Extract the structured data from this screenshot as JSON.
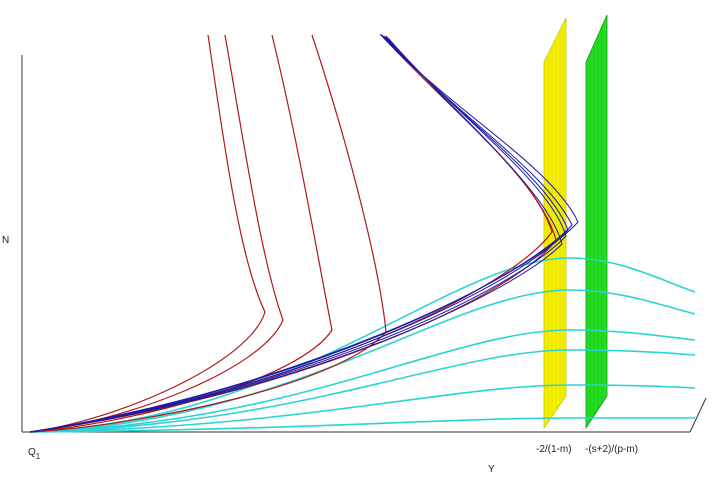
{
  "labels": {
    "origin": {
      "text": "Q",
      "subscript": "1"
    },
    "x_axis": "Y",
    "z_axis": "N",
    "plane_1": "-2/(1-m)",
    "plane_2": "-(s+2)/(p-m)"
  }
}
